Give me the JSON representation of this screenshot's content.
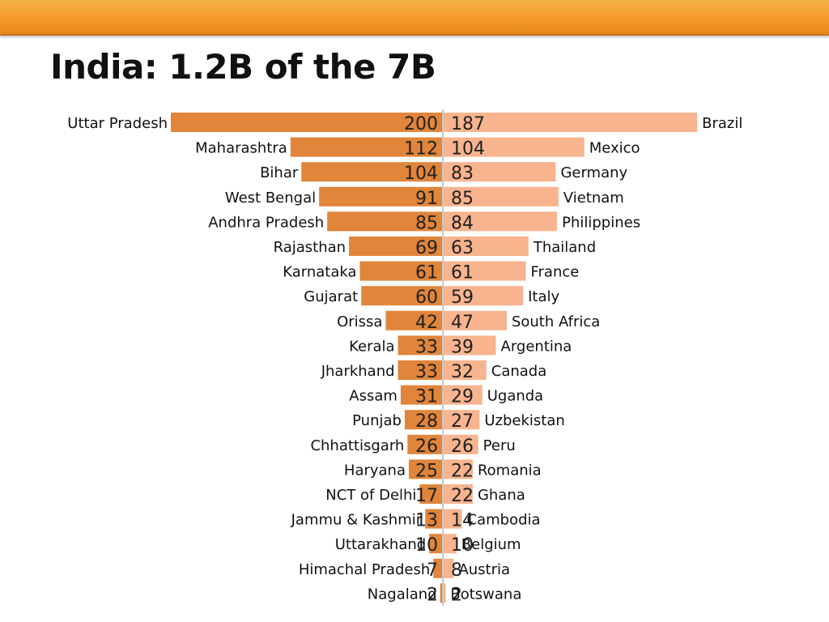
{
  "header": {
    "title": "India: 1.2B of the 7B"
  },
  "colors": {
    "header_bar": "#f49a28",
    "left_bar": "#e0853a",
    "right_bar": "#f7b48e",
    "divider": "#c9c9c9"
  },
  "chart_data": {
    "type": "bar",
    "orientation": "horizontal",
    "layout": "back-to-back",
    "grid": false,
    "title": "India: 1.2B of the 7B",
    "rows": [
      {
        "state": "Uttar Pradesh",
        "state_value": 200,
        "country": "Brazil",
        "country_value": 187
      },
      {
        "state": "Maharashtra",
        "state_value": 112,
        "country": "Mexico",
        "country_value": 104
      },
      {
        "state": "Bihar",
        "state_value": 104,
        "country": "Germany",
        "country_value": 83
      },
      {
        "state": "West Bengal",
        "state_value": 91,
        "country": "Vietnam",
        "country_value": 85
      },
      {
        "state": "Andhra Pradesh",
        "state_value": 85,
        "country": "Philippines",
        "country_value": 84
      },
      {
        "state": "Rajasthan",
        "state_value": 69,
        "country": "Thailand",
        "country_value": 63
      },
      {
        "state": "Karnataka",
        "state_value": 61,
        "country": "France",
        "country_value": 61
      },
      {
        "state": "Gujarat",
        "state_value": 60,
        "country": "Italy",
        "country_value": 59
      },
      {
        "state": "Orissa",
        "state_value": 42,
        "country": "South Africa",
        "country_value": 47
      },
      {
        "state": "Kerala",
        "state_value": 33,
        "country": "Argentina",
        "country_value": 39
      },
      {
        "state": "Jharkhand",
        "state_value": 33,
        "country": "Canada",
        "country_value": 32
      },
      {
        "state": "Assam",
        "state_value": 31,
        "country": "Uganda",
        "country_value": 29
      },
      {
        "state": "Punjab",
        "state_value": 28,
        "country": "Uzbekistan",
        "country_value": 27
      },
      {
        "state": "Chhattisgarh",
        "state_value": 26,
        "country": "Peru",
        "country_value": 26
      },
      {
        "state": "Haryana",
        "state_value": 25,
        "country": "Romania",
        "country_value": 22
      },
      {
        "state": "NCT of Delhi",
        "state_value": 17,
        "country": "Ghana",
        "country_value": 22
      },
      {
        "state": "Jammu & Kashmir",
        "state_value": 13,
        "country": "Cambodia",
        "country_value": 14
      },
      {
        "state": "Uttarakhand",
        "state_value": 10,
        "country": "Belgium",
        "country_value": 10
      },
      {
        "state": "Himachal Pradesh",
        "state_value": 7,
        "country": "Austria",
        "country_value": 8
      },
      {
        "state": "Nagaland",
        "state_value": 2,
        "country": "Botswana",
        "country_value": 2
      }
    ]
  }
}
